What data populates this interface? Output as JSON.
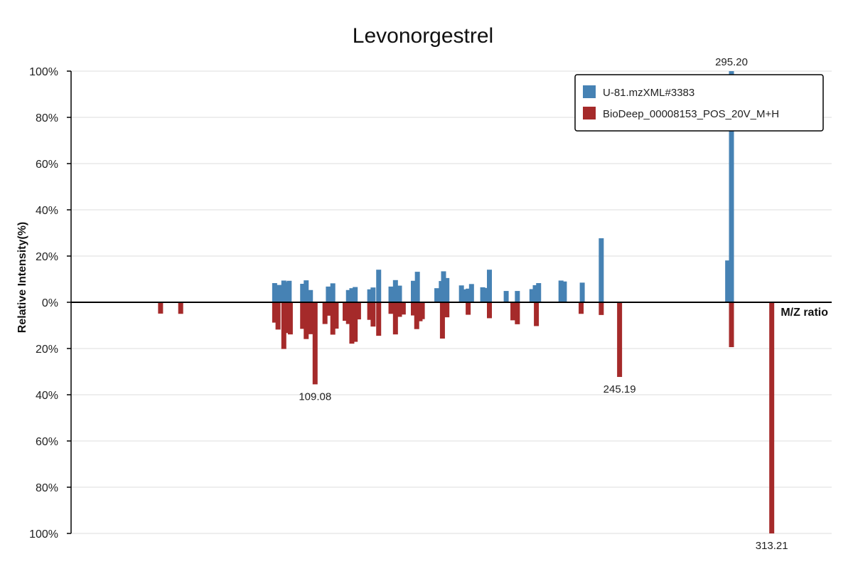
{
  "chart_data": {
    "type": "bar",
    "title": "Levonorgestrel",
    "ylabel": "Relative Intensity(%)",
    "xlabel": "M/Z ratio",
    "xlim": [
      0,
      340
    ],
    "ylim": [
      -100,
      100
    ],
    "y_ticks": [
      "100%",
      "80%",
      "60%",
      "40%",
      "20%",
      "0%",
      "20%",
      "40%",
      "60%",
      "80%",
      "100%"
    ],
    "y_tick_values": [
      100,
      80,
      60,
      40,
      20,
      0,
      -20,
      -40,
      -60,
      -80,
      -100
    ],
    "grid": true,
    "legend": {
      "position": "top-right"
    },
    "series": [
      {
        "name": "U-81.mzXML#3383",
        "color": "#4682b4",
        "direction": "up",
        "peaks": [
          {
            "mz": 91.0,
            "value": 8.3
          },
          {
            "mz": 93.0,
            "value": 7.5
          },
          {
            "mz": 95.1,
            "value": 9.4
          },
          {
            "mz": 96.8,
            "value": 8.8
          },
          {
            "mz": 97.5,
            "value": 9.3
          },
          {
            "mz": 103.5,
            "value": 8.0
          },
          {
            "mz": 105.1,
            "value": 9.5
          },
          {
            "mz": 107.0,
            "value": 5.3
          },
          {
            "mz": 115.0,
            "value": 6.8
          },
          {
            "mz": 117.0,
            "value": 8.2
          },
          {
            "mz": 124.0,
            "value": 5.3
          },
          {
            "mz": 125.5,
            "value": 6.1
          },
          {
            "mz": 127.0,
            "value": 6.6
          },
          {
            "mz": 133.5,
            "value": 5.6
          },
          {
            "mz": 135.0,
            "value": 6.4
          },
          {
            "mz": 137.5,
            "value": 14.1
          },
          {
            "mz": 143.0,
            "value": 6.8
          },
          {
            "mz": 145.0,
            "value": 9.6
          },
          {
            "mz": 146.8,
            "value": 7.2
          },
          {
            "mz": 153.0,
            "value": 9.3
          },
          {
            "mz": 154.8,
            "value": 13.2
          },
          {
            "mz": 163.5,
            "value": 6.1
          },
          {
            "mz": 165.5,
            "value": 9.2
          },
          {
            "mz": 166.5,
            "value": 13.4
          },
          {
            "mz": 168.0,
            "value": 10.5
          },
          {
            "mz": 174.5,
            "value": 7.3
          },
          {
            "mz": 176.5,
            "value": 5.6
          },
          {
            "mz": 177.5,
            "value": 5.9
          },
          {
            "mz": 179.0,
            "value": 7.9
          },
          {
            "mz": 184.0,
            "value": 6.5
          },
          {
            "mz": 186.0,
            "value": 6.2
          },
          {
            "mz": 187.0,
            "value": 14.1
          },
          {
            "mz": 194.5,
            "value": 4.9
          },
          {
            "mz": 199.5,
            "value": 4.9
          },
          {
            "mz": 206.0,
            "value": 5.7
          },
          {
            "mz": 207.5,
            "value": 7.4
          },
          {
            "mz": 209.0,
            "value": 8.3
          },
          {
            "mz": 219.0,
            "value": 9.4
          },
          {
            "mz": 220.5,
            "value": 9.0
          },
          {
            "mz": 228.5,
            "value": 8.5
          },
          {
            "mz": 237.0,
            "value": 27.7
          },
          {
            "mz": 293.5,
            "value": 18.1
          },
          {
            "mz": 295.2,
            "value": 100,
            "label": "295.20"
          }
        ]
      },
      {
        "name": "BioDeep_00008153_POS_20V_M+H",
        "color": "#a52a2a",
        "direction": "down",
        "peaks": [
          {
            "mz": 40.0,
            "value": 4.9
          },
          {
            "mz": 49.0,
            "value": 5.0
          },
          {
            "mz": 91.0,
            "value": 8.8
          },
          {
            "mz": 92.5,
            "value": 11.8
          },
          {
            "mz": 95.1,
            "value": 20.2
          },
          {
            "mz": 96.8,
            "value": 13.3
          },
          {
            "mz": 98.0,
            "value": 13.9
          },
          {
            "mz": 103.5,
            "value": 11.5
          },
          {
            "mz": 105.1,
            "value": 15.9
          },
          {
            "mz": 107.0,
            "value": 13.8
          },
          {
            "mz": 109.08,
            "value": 35.5,
            "label": "109.08"
          },
          {
            "mz": 113.5,
            "value": 9.4
          },
          {
            "mz": 115.5,
            "value": 5.8
          },
          {
            "mz": 117.0,
            "value": 14.0
          },
          {
            "mz": 118.5,
            "value": 11.4
          },
          {
            "mz": 122.5,
            "value": 8.0
          },
          {
            "mz": 124.0,
            "value": 9.4
          },
          {
            "mz": 125.5,
            "value": 17.9
          },
          {
            "mz": 127.0,
            "value": 17.1
          },
          {
            "mz": 128.5,
            "value": 7.4
          },
          {
            "mz": 133.5,
            "value": 7.6
          },
          {
            "mz": 135.0,
            "value": 10.5
          },
          {
            "mz": 137.5,
            "value": 14.5
          },
          {
            "mz": 143.0,
            "value": 5.0
          },
          {
            "mz": 145.0,
            "value": 13.9
          },
          {
            "mz": 146.8,
            "value": 6.3
          },
          {
            "mz": 148.5,
            "value": 5.3
          },
          {
            "mz": 153.0,
            "value": 5.7
          },
          {
            "mz": 154.5,
            "value": 11.6
          },
          {
            "mz": 156.0,
            "value": 8.2
          },
          {
            "mz": 157.0,
            "value": 7.3
          },
          {
            "mz": 166.0,
            "value": 15.7
          },
          {
            "mz": 168.0,
            "value": 6.5
          },
          {
            "mz": 177.5,
            "value": 5.4
          },
          {
            "mz": 187.0,
            "value": 6.9
          },
          {
            "mz": 197.5,
            "value": 7.8
          },
          {
            "mz": 199.5,
            "value": 9.5
          },
          {
            "mz": 208.0,
            "value": 10.3
          },
          {
            "mz": 245.19,
            "value": 32.3,
            "label": "245.19"
          },
          {
            "mz": 228.0,
            "value": 5.0
          },
          {
            "mz": 237.0,
            "value": 5.5
          },
          {
            "mz": 295.2,
            "value": 19.4
          },
          {
            "mz": 313.21,
            "value": 100,
            "label": "313.21"
          }
        ]
      }
    ]
  }
}
